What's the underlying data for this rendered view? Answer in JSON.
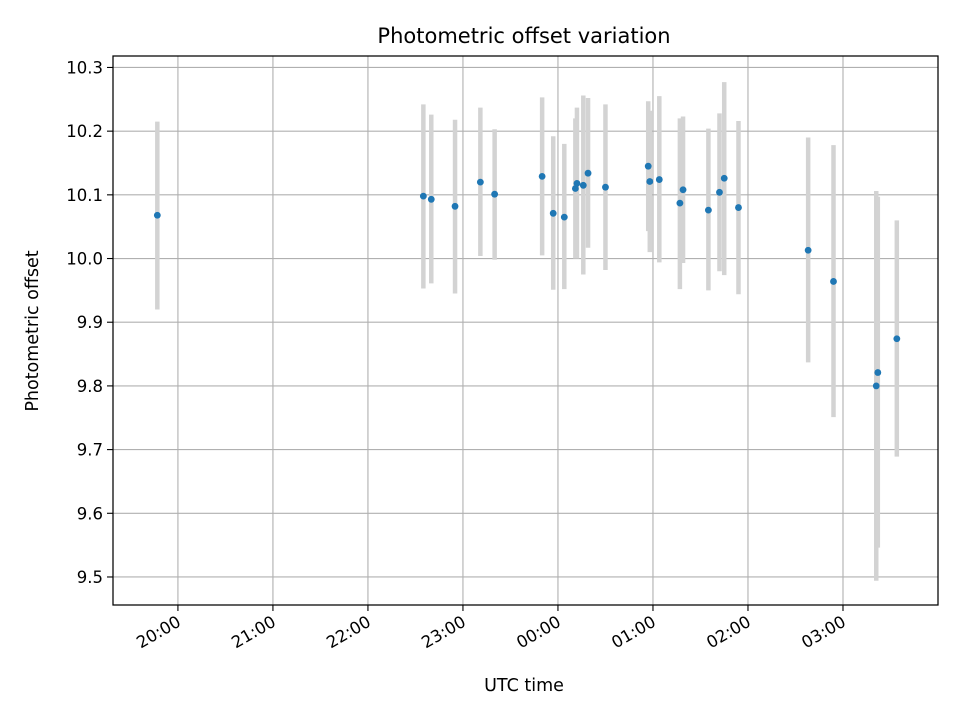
{
  "chart_data": {
    "type": "scatter",
    "title": "Photometric offset variation",
    "xlabel": "UTC time",
    "ylabel": "Photometric offset",
    "x_axis": {
      "kind": "time",
      "ticks": [
        "20:00",
        "21:00",
        "22:00",
        "23:00",
        "00:00",
        "01:00",
        "02:00",
        "03:00"
      ],
      "range": [
        "19:19",
        "04:00"
      ]
    },
    "y_axis": {
      "ticks": [
        "9.5",
        "9.6",
        "9.7",
        "9.8",
        "9.9",
        "10.0",
        "10.1",
        "10.2",
        "10.3"
      ],
      "ylim": [
        9.456,
        10.318
      ]
    },
    "grid": true,
    "marker_color": "#1f77b4",
    "errorbar_color": "#d3d3d3",
    "series": [
      {
        "points": [
          {
            "t": "19:47",
            "y": 10.068,
            "lo": 9.92,
            "hi": 10.215
          },
          {
            "t": "22:35",
            "y": 10.098,
            "lo": 9.953,
            "hi": 10.242
          },
          {
            "t": "22:40",
            "y": 10.093,
            "lo": 9.961,
            "hi": 10.226
          },
          {
            "t": "22:55",
            "y": 10.082,
            "lo": 9.945,
            "hi": 10.218
          },
          {
            "t": "23:11",
            "y": 10.12,
            "lo": 10.004,
            "hi": 10.237
          },
          {
            "t": "23:20",
            "y": 10.101,
            "lo": 9.998,
            "hi": 10.203
          },
          {
            "t": "23:50",
            "y": 10.129,
            "lo": 10.005,
            "hi": 10.253
          },
          {
            "t": "23:57",
            "y": 10.071,
            "lo": 9.951,
            "hi": 10.192
          },
          {
            "t": "00:04",
            "y": 10.065,
            "lo": 9.952,
            "hi": 10.18
          },
          {
            "t": "00:11",
            "y": 10.11,
            "lo": 10.0,
            "hi": 10.22
          },
          {
            "t": "00:12",
            "y": 10.118,
            "lo": 10.0,
            "hi": 10.237
          },
          {
            "t": "00:16",
            "y": 10.115,
            "lo": 9.975,
            "hi": 10.256
          },
          {
            "t": "00:19",
            "y": 10.134,
            "lo": 10.017,
            "hi": 10.252
          },
          {
            "t": "00:30",
            "y": 10.112,
            "lo": 9.982,
            "hi": 10.242
          },
          {
            "t": "00:57",
            "y": 10.145,
            "lo": 10.043,
            "hi": 10.247
          },
          {
            "t": "00:58",
            "y": 10.121,
            "lo": 10.01,
            "hi": 10.232
          },
          {
            "t": "01:04",
            "y": 10.124,
            "lo": 9.994,
            "hi": 10.255
          },
          {
            "t": "01:17",
            "y": 10.087,
            "lo": 9.952,
            "hi": 10.22
          },
          {
            "t": "01:19",
            "y": 10.108,
            "lo": 9.993,
            "hi": 10.223
          },
          {
            "t": "01:35",
            "y": 10.076,
            "lo": 9.95,
            "hi": 10.204
          },
          {
            "t": "01:42",
            "y": 10.104,
            "lo": 9.98,
            "hi": 10.228
          },
          {
            "t": "01:45",
            "y": 10.126,
            "lo": 9.974,
            "hi": 10.277
          },
          {
            "t": "01:54",
            "y": 10.08,
            "lo": 9.944,
            "hi": 10.216
          },
          {
            "t": "02:38",
            "y": 10.013,
            "lo": 9.837,
            "hi": 10.19
          },
          {
            "t": "02:54",
            "y": 9.964,
            "lo": 9.751,
            "hi": 10.178
          },
          {
            "t": "03:21",
            "y": 9.8,
            "lo": 9.494,
            "hi": 10.106
          },
          {
            "t": "03:22",
            "y": 9.821,
            "lo": 9.546,
            "hi": 10.097
          },
          {
            "t": "03:34",
            "y": 9.874,
            "lo": 9.689,
            "hi": 10.06
          }
        ]
      }
    ]
  }
}
